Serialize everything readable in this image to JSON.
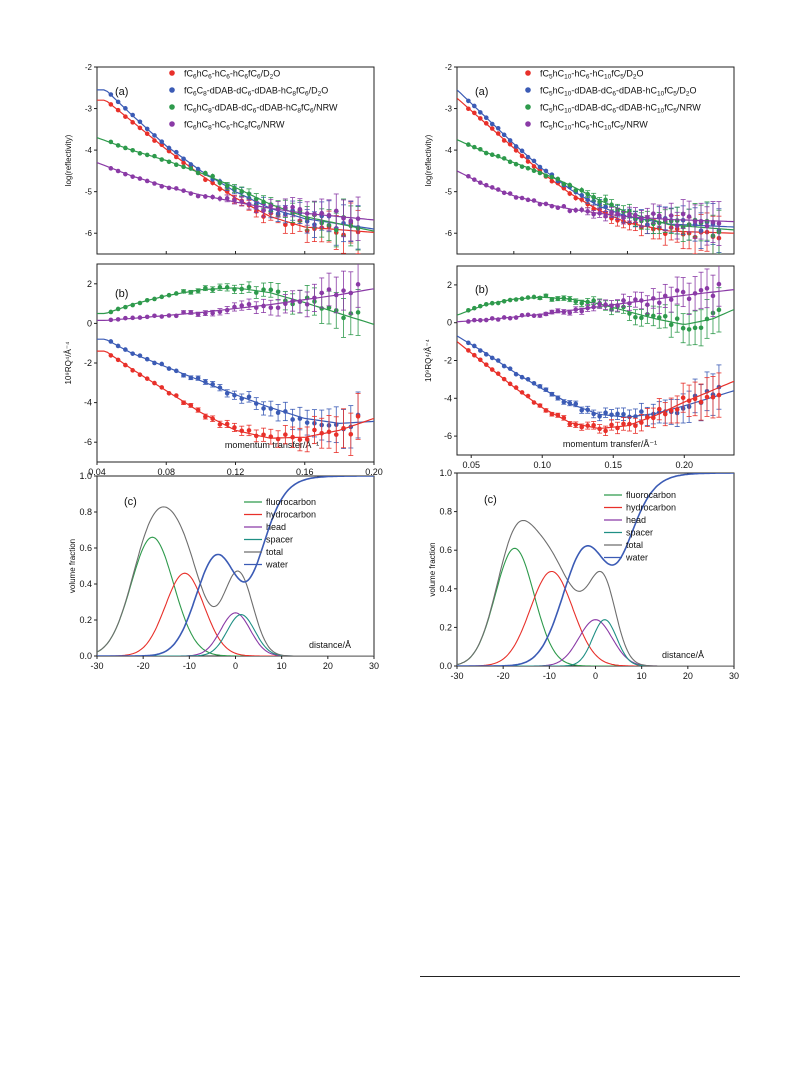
{
  "colors": {
    "red": "#e8302a",
    "blue": "#3b5bb5",
    "green": "#2e9a4c",
    "purple": "#8a3aa6",
    "teal": "#1f8f84",
    "gray": "#6e6e6e",
    "water": "#3a65c2"
  },
  "chart_data": [
    {
      "id": "left-a",
      "type": "scatter",
      "panel_label": "(a)",
      "xlim": [
        0.04,
        0.2
      ],
      "ylim": [
        -6.5,
        -2
      ],
      "ylabel": "log(reflectivity)",
      "yticks": [
        -2,
        -3,
        -4,
        -5,
        -6
      ],
      "legend": [
        "fC6hC6-hC6-hC6fC6/D2O",
        "fC6C8-dDAB-dC6-dDAB-hC8fC6/D2O",
        "fC6hC8-dDAB-dC6-dDAB-hC8fC6/NRW",
        "fC6hC8-hC6-hC8fC6/NRW"
      ],
      "series": [
        {
          "color": "red",
          "fit": [
            [
              0.045,
              -2.8
            ],
            [
              0.06,
              -3.3
            ],
            [
              0.08,
              -3.98
            ],
            [
              0.1,
              -4.6
            ],
            [
              0.12,
              -5.15
            ],
            [
              0.14,
              -5.6
            ],
            [
              0.16,
              -5.85
            ],
            [
              0.2,
              -5.98
            ]
          ]
        },
        {
          "color": "blue",
          "fit": [
            [
              0.045,
              -2.55
            ],
            [
              0.06,
              -3.15
            ],
            [
              0.08,
              -3.9
            ],
            [
              0.1,
              -4.5
            ],
            [
              0.12,
              -5.0
            ],
            [
              0.14,
              -5.4
            ],
            [
              0.16,
              -5.65
            ],
            [
              0.2,
              -5.9
            ]
          ]
        },
        {
          "color": "green",
          "fit": [
            [
              0.04,
              -3.7
            ],
            [
              0.06,
              -4.0
            ],
            [
              0.08,
              -4.25
            ],
            [
              0.1,
              -4.55
            ],
            [
              0.12,
              -4.9
            ],
            [
              0.14,
              -5.3
            ],
            [
              0.16,
              -5.6
            ],
            [
              0.2,
              -5.95
            ]
          ]
        },
        {
          "color": "purple",
          "fit": [
            [
              0.04,
              -4.3
            ],
            [
              0.06,
              -4.62
            ],
            [
              0.08,
              -4.88
            ],
            [
              0.1,
              -5.08
            ],
            [
              0.12,
              -5.25
            ],
            [
              0.14,
              -5.4
            ],
            [
              0.16,
              -5.52
            ],
            [
              0.2,
              -5.68
            ]
          ]
        }
      ]
    },
    {
      "id": "left-b",
      "type": "scatter",
      "panel_label": "(b)",
      "xlim": [
        0.04,
        0.2
      ],
      "ylim": [
        -7,
        3
      ],
      "ylabel": "10⁹RQ⁴/Å⁻⁴",
      "xlabel": "momentum transfer/Å⁻¹",
      "yticks": [
        2,
        0,
        -2,
        -4,
        -6
      ],
      "xticks": [
        0.04,
        0.08,
        0.12,
        0.16,
        0.2
      ],
      "xticklabels": [
        "0.04",
        "0.08",
        "0.12",
        "0.16",
        "0.20"
      ],
      "series": [
        {
          "color": "green",
          "fit": [
            [
              0.045,
              0.5
            ],
            [
              0.06,
              0.95
            ],
            [
              0.08,
              1.4
            ],
            [
              0.1,
              1.7
            ],
            [
              0.12,
              1.8
            ],
            [
              0.14,
              1.55
            ],
            [
              0.16,
              1.05
            ],
            [
              0.18,
              0.5
            ],
            [
              0.2,
              -0.05
            ]
          ]
        },
        {
          "color": "purple",
          "fit": [
            [
              0.045,
              0.15
            ],
            [
              0.06,
              0.25
            ],
            [
              0.08,
              0.4
            ],
            [
              0.1,
              0.55
            ],
            [
              0.12,
              0.75
            ],
            [
              0.14,
              0.95
            ],
            [
              0.16,
              1.2
            ],
            [
              0.18,
              1.45
            ],
            [
              0.2,
              1.75
            ]
          ]
        },
        {
          "color": "blue",
          "fit": [
            [
              0.045,
              -0.8
            ],
            [
              0.06,
              -1.5
            ],
            [
              0.08,
              -2.2
            ],
            [
              0.1,
              -2.9
            ],
            [
              0.12,
              -3.6
            ],
            [
              0.14,
              -4.25
            ],
            [
              0.16,
              -4.8
            ],
            [
              0.18,
              -5.05
            ],
            [
              0.2,
              -4.95
            ]
          ]
        },
        {
          "color": "red",
          "fit": [
            [
              0.045,
              -1.4
            ],
            [
              0.06,
              -2.3
            ],
            [
              0.08,
              -3.4
            ],
            [
              0.1,
              -4.5
            ],
            [
              0.12,
              -5.4
            ],
            [
              0.14,
              -5.8
            ],
            [
              0.16,
              -5.75
            ],
            [
              0.18,
              -5.4
            ],
            [
              0.2,
              -4.8
            ]
          ]
        }
      ]
    },
    {
      "id": "left-c",
      "type": "line",
      "panel_label": "(c)",
      "xlim": [
        -30,
        30
      ],
      "ylim": [
        0,
        1.0
      ],
      "ylabel": "volume fraction",
      "xlabel": "distance/Å",
      "xticks": [
        -30,
        -20,
        -10,
        0,
        10,
        20,
        30
      ],
      "yticks": [
        0.0,
        0.2,
        0.4,
        0.6,
        0.8,
        1.0
      ],
      "legend": [
        "fluorocarbon",
        "hydrocarbon",
        "head",
        "spacer",
        "total",
        "water"
      ],
      "legend_colors": [
        "green",
        "red",
        "purple",
        "teal",
        "gray",
        "blue"
      ],
      "series": [
        {
          "name": "fluorocarbon",
          "color": "green",
          "model": {
            "kind": "gauss",
            "amp": 0.66,
            "mu": -18,
            "sigma": 4.6
          }
        },
        {
          "name": "hydrocarbon",
          "color": "red",
          "model": {
            "kind": "gauss",
            "amp": 0.46,
            "mu": -11,
            "sigma": 4.2
          }
        },
        {
          "name": "head",
          "color": "purple",
          "model": {
            "kind": "gauss",
            "amp": 0.24,
            "mu": 0,
            "sigma": 3.2
          }
        },
        {
          "name": "spacer",
          "color": "teal",
          "model": {
            "kind": "gauss",
            "amp": 0.23,
            "mu": 1.2,
            "sigma": 3.0
          }
        },
        {
          "name": "total",
          "color": "gray",
          "model": {
            "kind": "sum",
            "of": [
              0,
              1,
              2,
              3
            ]
          }
        },
        {
          "name": "water",
          "color": "blue",
          "model": {
            "kind": "water",
            "step_mu": 5,
            "step_w": 2.6,
            "dip_amp": 0.55,
            "dip_mu": -4,
            "dip_sigma": 4.5
          }
        }
      ]
    },
    {
      "id": "right-a",
      "type": "scatter",
      "panel_label": "(a)",
      "xlim": [
        0.04,
        0.235
      ],
      "ylim": [
        -6.5,
        -2
      ],
      "ylabel": "log(reflectivity)",
      "yticks": [
        -2,
        -3,
        -4,
        -5,
        -6
      ],
      "legend": [
        "fC5hC10-hC6-hC10fC5/D2O",
        "fC5hC10-dDAB-dC6-dDAB-hC10fC5/D2O",
        "fC5hC10-dDAB-dC6-dDAB-hC10fC5/NRW",
        "fC5hC10-hC6-hC10fC5/NRW"
      ],
      "series": [
        {
          "color": "red",
          "fit": [
            [
              0.04,
              -2.75
            ],
            [
              0.06,
              -3.35
            ],
            [
              0.08,
              -3.95
            ],
            [
              0.1,
              -4.55
            ],
            [
              0.12,
              -5.05
            ],
            [
              0.14,
              -5.45
            ],
            [
              0.16,
              -5.75
            ],
            [
              0.19,
              -5.95
            ],
            [
              0.235,
              -6.0
            ]
          ]
        },
        {
          "color": "blue",
          "fit": [
            [
              0.04,
              -2.55
            ],
            [
              0.06,
              -3.2
            ],
            [
              0.08,
              -3.85
            ],
            [
              0.1,
              -4.45
            ],
            [
              0.12,
              -4.95
            ],
            [
              0.14,
              -5.35
            ],
            [
              0.16,
              -5.6
            ],
            [
              0.19,
              -5.78
            ],
            [
              0.235,
              -5.85
            ]
          ]
        },
        {
          "color": "green",
          "fit": [
            [
              0.04,
              -3.75
            ],
            [
              0.06,
              -4.05
            ],
            [
              0.08,
              -4.3
            ],
            [
              0.1,
              -4.55
            ],
            [
              0.12,
              -4.85
            ],
            [
              0.14,
              -5.2
            ],
            [
              0.16,
              -5.5
            ],
            [
              0.19,
              -5.8
            ],
            [
              0.235,
              -5.92
            ]
          ]
        },
        {
          "color": "purple",
          "fit": [
            [
              0.04,
              -4.5
            ],
            [
              0.06,
              -4.85
            ],
            [
              0.08,
              -5.1
            ],
            [
              0.1,
              -5.28
            ],
            [
              0.12,
              -5.42
            ],
            [
              0.14,
              -5.52
            ],
            [
              0.16,
              -5.6
            ],
            [
              0.19,
              -5.67
            ],
            [
              0.235,
              -5.72
            ]
          ]
        }
      ]
    },
    {
      "id": "right-b",
      "type": "scatter",
      "panel_label": "(b)",
      "xlim": [
        0.04,
        0.235
      ],
      "ylim": [
        -7,
        3
      ],
      "ylabel": "10⁹RQ⁴/Å⁻⁴",
      "xlabel": "momentum transfer/Å⁻¹",
      "yticks": [
        2,
        0,
        -2,
        -4,
        -6
      ],
      "xticks": [
        0.05,
        0.1,
        0.15,
        0.2
      ],
      "xticklabels": [
        "0.05",
        "0.10",
        "0.15",
        "0.20"
      ],
      "series": [
        {
          "color": "green",
          "fit": [
            [
              0.04,
              0.4
            ],
            [
              0.06,
              0.95
            ],
            [
              0.08,
              1.25
            ],
            [
              0.1,
              1.35
            ],
            [
              0.12,
              1.25
            ],
            [
              0.14,
              1.0
            ],
            [
              0.16,
              0.6
            ],
            [
              0.18,
              0.2
            ],
            [
              0.2,
              -0.1
            ],
            [
              0.22,
              0.2
            ],
            [
              0.235,
              0.7
            ]
          ]
        },
        {
          "color": "purple",
          "fit": [
            [
              0.04,
              0.05
            ],
            [
              0.06,
              0.15
            ],
            [
              0.08,
              0.3
            ],
            [
              0.1,
              0.45
            ],
            [
              0.12,
              0.65
            ],
            [
              0.14,
              0.85
            ],
            [
              0.16,
              1.05
            ],
            [
              0.18,
              1.25
            ],
            [
              0.2,
              1.45
            ],
            [
              0.235,
              1.75
            ]
          ]
        },
        {
          "color": "blue",
          "fit": [
            [
              0.04,
              -0.7
            ],
            [
              0.06,
              -1.6
            ],
            [
              0.08,
              -2.6
            ],
            [
              0.1,
              -3.5
            ],
            [
              0.12,
              -4.3
            ],
            [
              0.14,
              -4.85
            ],
            [
              0.16,
              -5.0
            ],
            [
              0.18,
              -4.8
            ],
            [
              0.2,
              -4.4
            ],
            [
              0.235,
              -3.6
            ]
          ]
        },
        {
          "color": "red",
          "fit": [
            [
              0.04,
              -1.0
            ],
            [
              0.06,
              -2.2
            ],
            [
              0.08,
              -3.4
            ],
            [
              0.1,
              -4.5
            ],
            [
              0.12,
              -5.3
            ],
            [
              0.14,
              -5.6
            ],
            [
              0.16,
              -5.45
            ],
            [
              0.18,
              -4.9
            ],
            [
              0.2,
              -4.2
            ],
            [
              0.235,
              -3.1
            ]
          ]
        }
      ]
    },
    {
      "id": "right-c",
      "type": "line",
      "panel_label": "(c)",
      "xlim": [
        -30,
        30
      ],
      "ylim": [
        0,
        1.0
      ],
      "ylabel": "volume fraction",
      "xlabel": "distance/Å",
      "xticks": [
        -30,
        -20,
        -10,
        0,
        10,
        20,
        30
      ],
      "yticks": [
        0.0,
        0.2,
        0.4,
        0.6,
        0.8,
        1.0
      ],
      "legend": [
        "fluorocarbon",
        "hydrocarbon",
        "head",
        "spacer",
        "total",
        "water"
      ],
      "legend_colors": [
        "green",
        "red",
        "purple",
        "teal",
        "gray",
        "blue"
      ],
      "series": [
        {
          "name": "fluorocarbon",
          "color": "green",
          "model": {
            "kind": "gauss",
            "amp": 0.61,
            "mu": -17.5,
            "sigma": 4.2
          }
        },
        {
          "name": "hydrocarbon",
          "color": "red",
          "model": {
            "kind": "gauss",
            "amp": 0.49,
            "mu": -9.5,
            "sigma": 4.6
          }
        },
        {
          "name": "head",
          "color": "purple",
          "model": {
            "kind": "gauss",
            "amp": 0.24,
            "mu": 0,
            "sigma": 3.6
          }
        },
        {
          "name": "spacer",
          "color": "teal",
          "model": {
            "kind": "gauss",
            "amp": 0.24,
            "mu": 2,
            "sigma": 2.6
          }
        },
        {
          "name": "total",
          "color": "gray",
          "model": {
            "kind": "sum",
            "of": [
              0,
              1,
              2,
              3
            ]
          }
        },
        {
          "name": "water",
          "color": "blue",
          "model": {
            "kind": "water",
            "step_mu": 6,
            "step_w": 2.8,
            "dip_amp": 0.6,
            "dip_mu": -2,
            "dip_sigma": 5
          }
        }
      ]
    }
  ]
}
